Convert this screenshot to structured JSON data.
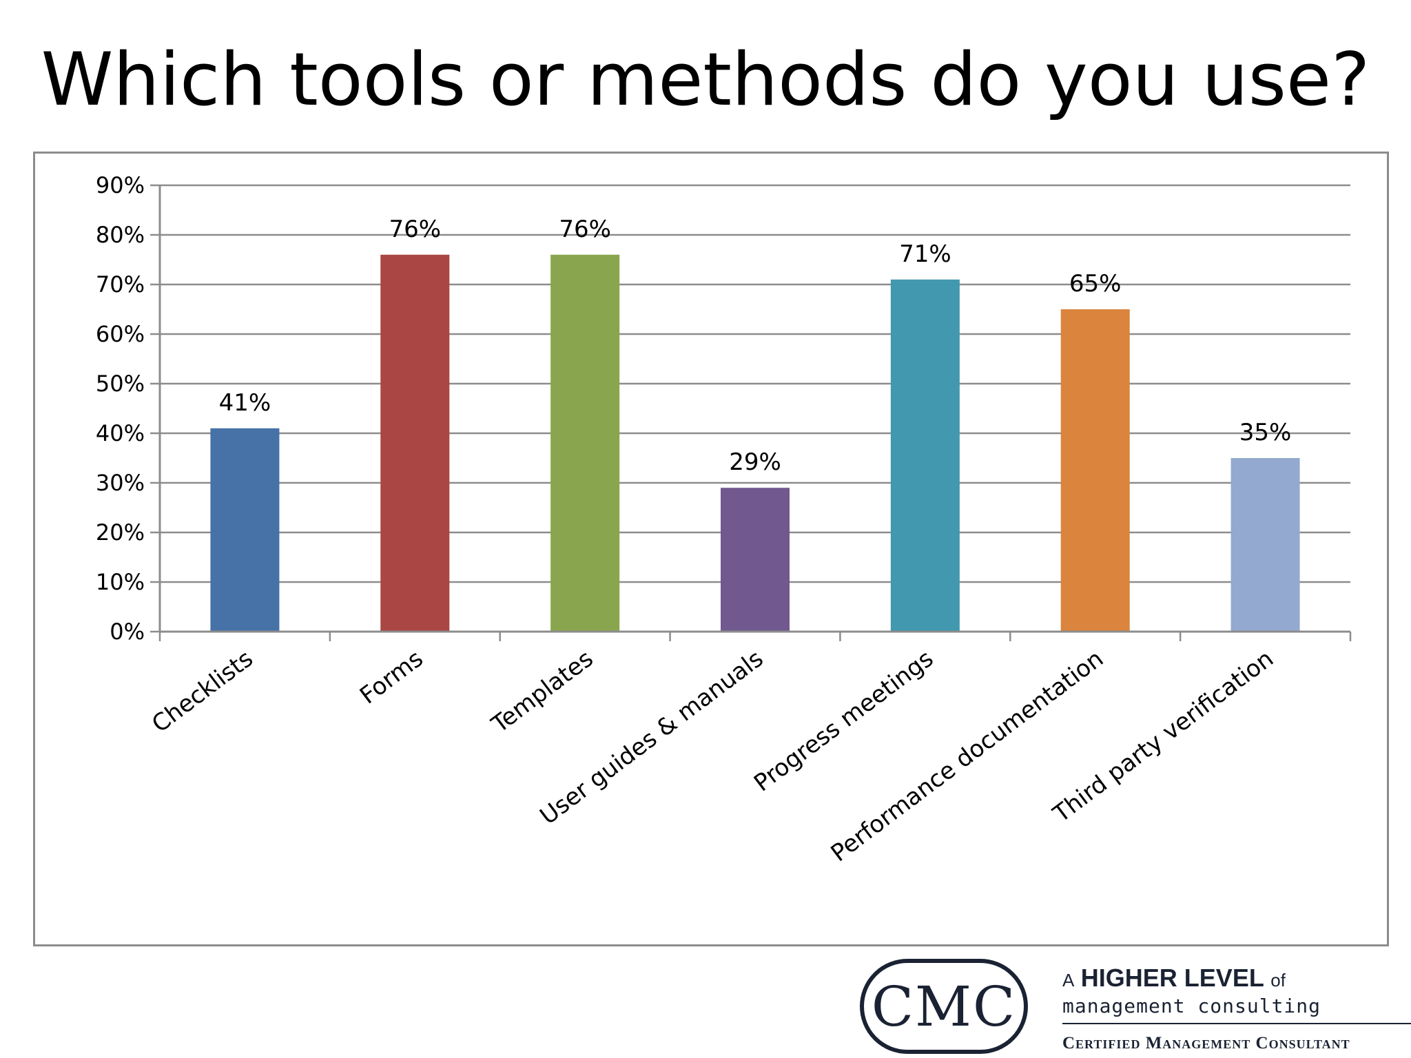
{
  "slide": {
    "title": "Which tools or methods do you use?"
  },
  "chart_data": {
    "type": "bar",
    "categories": [
      "Checklists",
      "Forms",
      "Templates",
      "User guides & manuals",
      "Progress meetings",
      "Performance documentation",
      "Third party verification"
    ],
    "values": [
      41,
      76,
      76,
      29,
      71,
      65,
      35
    ],
    "data_labels": [
      "41%",
      "76%",
      "76%",
      "29%",
      "71%",
      "65%",
      "35%"
    ],
    "colors": [
      "#4672a8",
      "#aa4643",
      "#89a54e",
      "#71588f",
      "#4198af",
      "#db843d",
      "#93a9cf"
    ],
    "y_ticks": [
      0,
      10,
      20,
      30,
      40,
      50,
      60,
      70,
      80,
      90
    ],
    "y_tick_labels": [
      "0%",
      "10%",
      "20%",
      "30%",
      "40%",
      "50%",
      "60%",
      "70%",
      "80%",
      "90%"
    ],
    "ylim": [
      0,
      90
    ],
    "grid": true,
    "legend": "none",
    "title": "",
    "xlabel": "",
    "ylabel": ""
  },
  "logo": {
    "badge_text": "CMC",
    "tagline_a": "A",
    "tagline_higher_level": "HIGHER LEVEL",
    "tagline_of": "of",
    "tagline_line2": "management consulting",
    "tagline_line3": "Certified Management Consultant"
  }
}
